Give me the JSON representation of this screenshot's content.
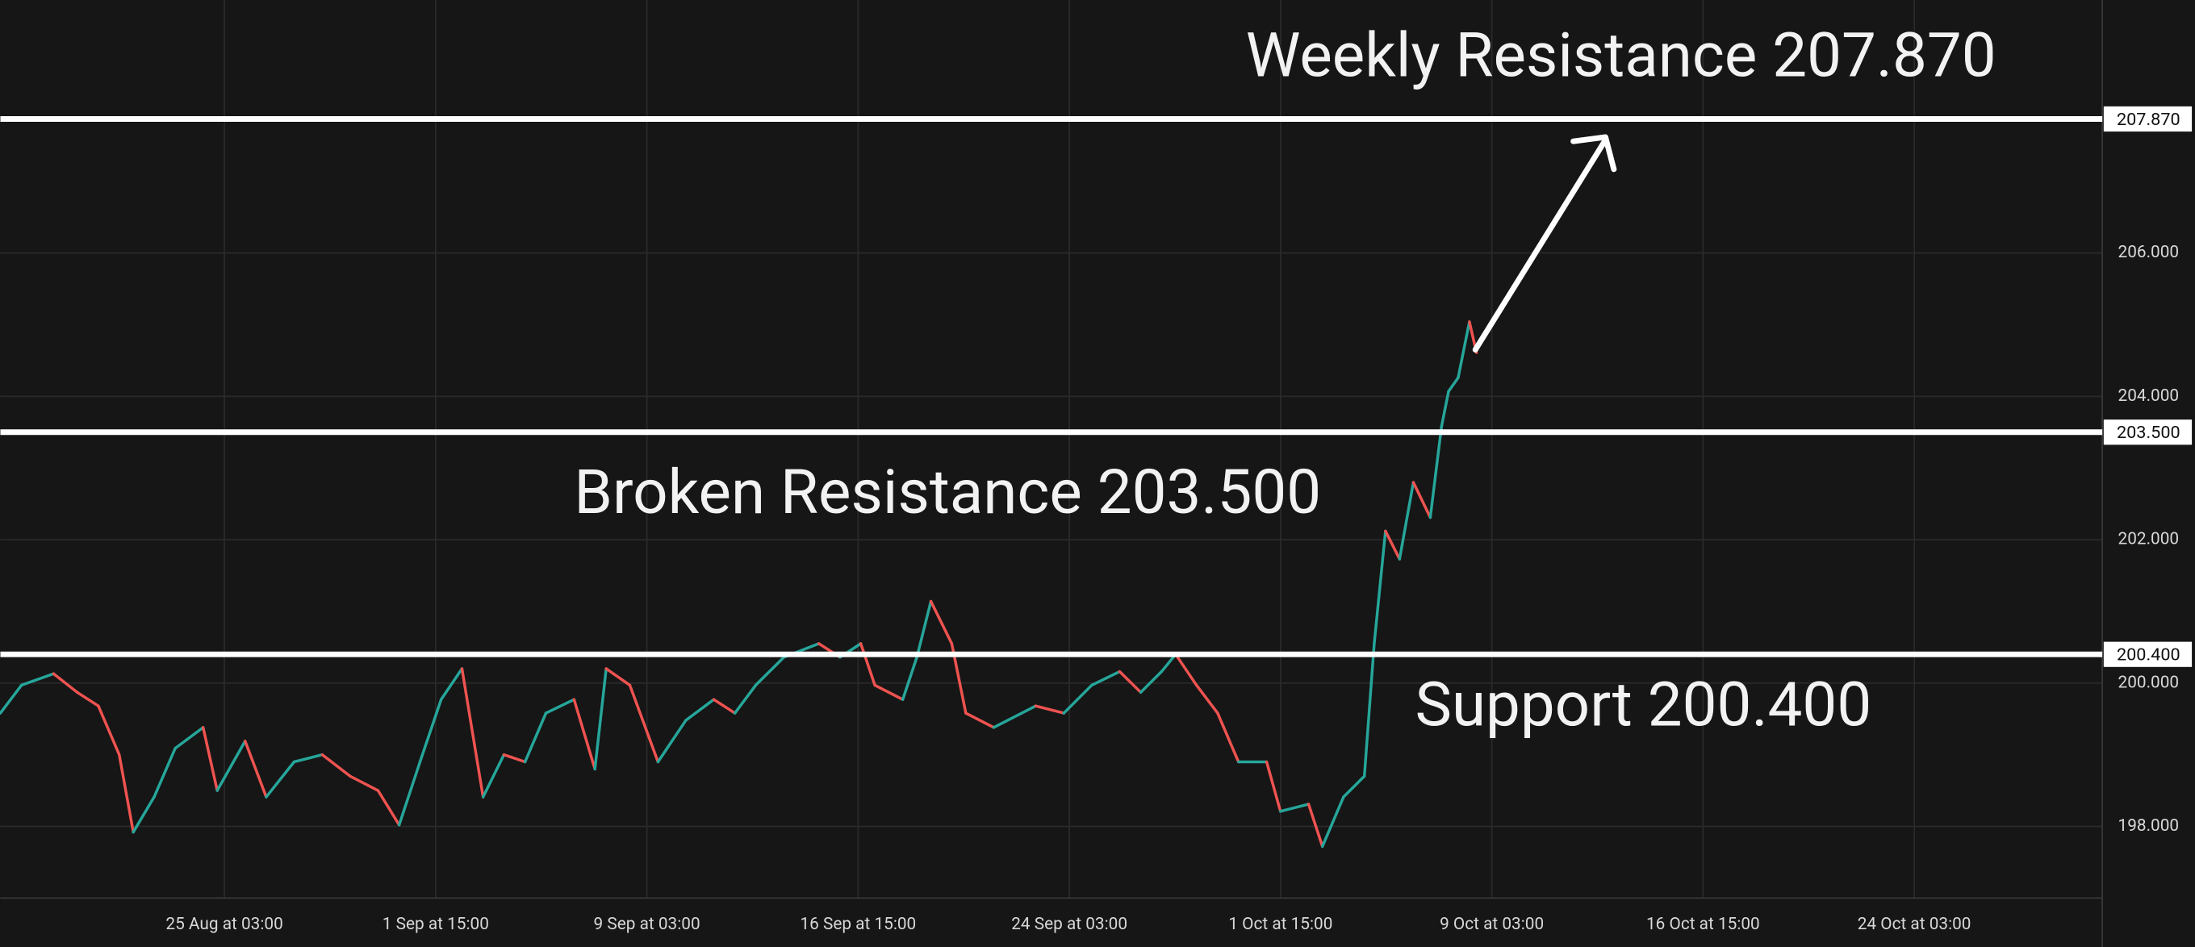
{
  "chart_data": {
    "type": "line",
    "up_color": "#26a69a",
    "down_color": "#ef5350",
    "x": [
      17.17,
      17.92,
      19.06,
      19.9,
      20.65,
      21.39,
      21.89,
      22.63,
      23.38,
      24.37,
      24.87,
      25.86,
      26.61,
      27.6,
      28.6,
      29.59,
      30.58,
      31.33,
      32.07,
      32.82,
      33.56,
      34.31,
      35.05,
      35.8,
      36.54,
      37.54,
      38.28,
      38.68,
      39.52,
      40.52,
      41.51,
      42.5,
      43.25,
      43.99,
      44.99,
      46.23,
      46.98,
      47.72,
      48.22,
      49.21,
      49.71,
      50.21,
      50.95,
      51.45,
      52.44,
      53.93,
      54.93,
      55.92,
      56.91,
      57.66,
      58.4,
      58.9,
      59.64,
      60.39,
      61.13,
      62.13,
      62.62,
      63.62,
      64.11,
      64.86,
      65.6,
      65.95,
      66.35,
      66.85,
      67.34,
      67.94,
      68.34,
      68.59,
      68.93,
      69.33,
      69.58
    ],
    "values": [
      199.58,
      199.97,
      200.13,
      199.87,
      199.68,
      199.0,
      197.92,
      198.41,
      199.09,
      199.38,
      198.5,
      199.19,
      198.41,
      198.9,
      199.0,
      198.7,
      198.5,
      198.02,
      198.9,
      199.77,
      200.2,
      198.41,
      199.0,
      198.9,
      199.58,
      199.77,
      198.8,
      200.2,
      199.97,
      198.9,
      199.48,
      199.77,
      199.58,
      199.97,
      200.36,
      200.55,
      200.36,
      200.55,
      199.97,
      199.77,
      200.36,
      201.14,
      200.55,
      199.58,
      199.38,
      199.68,
      199.58,
      199.97,
      200.16,
      199.87,
      200.16,
      200.4,
      199.97,
      199.58,
      198.9,
      198.9,
      198.21,
      198.31,
      197.72,
      198.41,
      198.7,
      200.55,
      202.12,
      201.73,
      202.8,
      202.31,
      203.58,
      204.07,
      204.26,
      205.04,
      204.61
    ],
    "xlim": [
      17.17,
      91.8
    ],
    "xticks": [
      {
        "value": 25.125,
        "label": "25 Aug at 03:00"
      },
      {
        "value": 32.625,
        "label": "1 Sep at 15:00"
      },
      {
        "value": 40.125,
        "label": "9 Sep at 03:00"
      },
      {
        "value": 47.625,
        "label": "16 Sep at 15:00"
      },
      {
        "value": 55.125,
        "label": "24 Sep at 03:00"
      },
      {
        "value": 62.625,
        "label": "1 Oct at 15:00"
      },
      {
        "value": 70.125,
        "label": "9 Oct at 03:00"
      },
      {
        "value": 77.625,
        "label": "16 Oct at 15:00"
      },
      {
        "value": 85.125,
        "label": "24 Oct at 03:00"
      }
    ],
    "ylim": [
      197.0,
      209.53
    ],
    "yticks": [
      {
        "value": 198,
        "label": "198.000"
      },
      {
        "value": 200,
        "label": "200.000"
      },
      {
        "value": 202,
        "label": "202.000"
      },
      {
        "value": 204,
        "label": "204.000"
      },
      {
        "value": 206,
        "label": "206.000"
      }
    ],
    "grid": true,
    "levels": [
      {
        "value": 207.87,
        "label": "207.870"
      },
      {
        "value": 203.5,
        "label": "203.500"
      },
      {
        "value": 200.4,
        "label": "200.400"
      }
    ],
    "annotations": [
      "Weekly Resistance 207.870",
      "Broken Resistance 203.500",
      "Support 200.400"
    ]
  }
}
